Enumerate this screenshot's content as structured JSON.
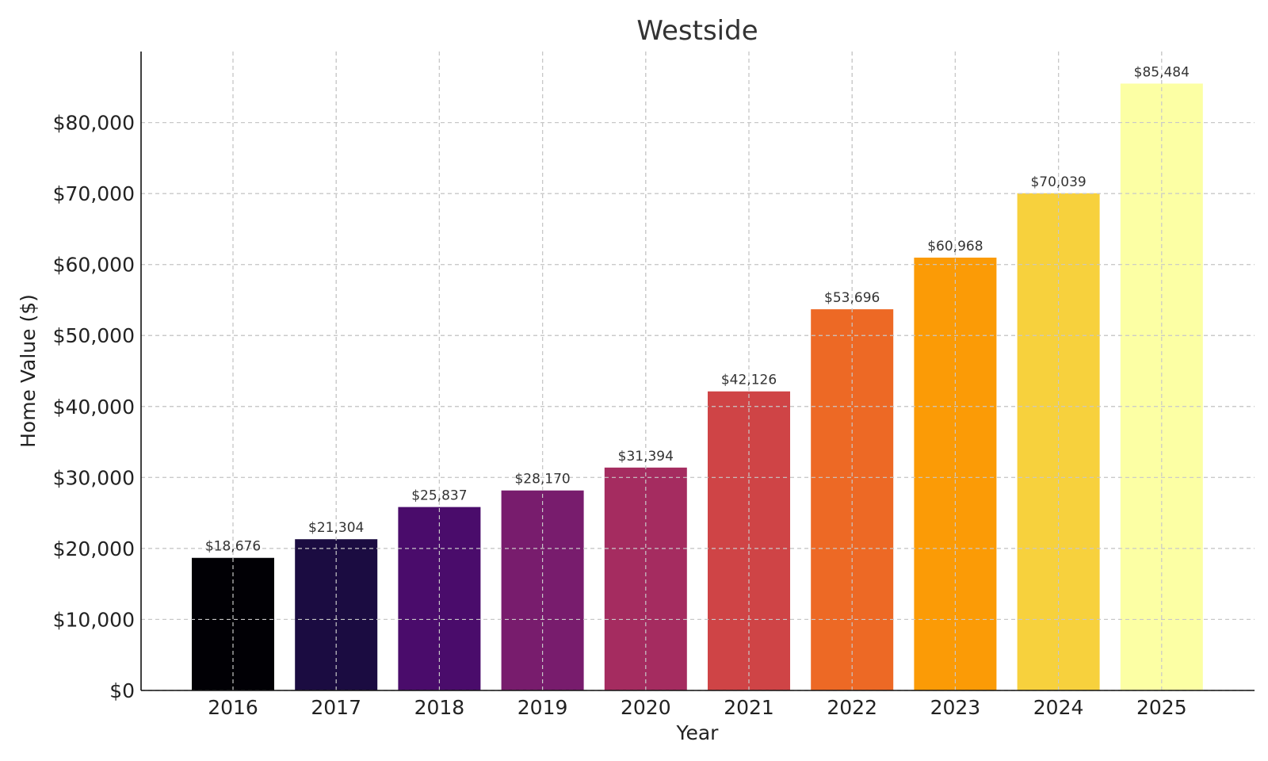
{
  "chart_data": {
    "type": "bar",
    "title": "Westside",
    "xlabel": "Year",
    "ylabel": "Home Value ($)",
    "categories": [
      "2016",
      "2017",
      "2018",
      "2019",
      "2020",
      "2021",
      "2022",
      "2023",
      "2024",
      "2025"
    ],
    "values": [
      18676,
      21304,
      25837,
      28170,
      31394,
      42126,
      53696,
      60968,
      70039,
      85484
    ],
    "data_labels": [
      "$18,676",
      "$21,304",
      "$25,837",
      "$28,170",
      "$31,394",
      "$42,126",
      "$53,696",
      "$60,968",
      "$70,039",
      "$85,484"
    ],
    "bar_colors": [
      "#010005",
      "#1b0c41",
      "#4a0c6b",
      "#781c6d",
      "#a52c60",
      "#cf4446",
      "#ed6925",
      "#fb9b06",
      "#f7d13d",
      "#fcffa4"
    ],
    "y_ticks": [
      0,
      10000,
      20000,
      30000,
      40000,
      50000,
      60000,
      70000,
      80000
    ],
    "y_tick_labels": [
      "$0",
      "$10,000",
      "$20,000",
      "$30,000",
      "$40,000",
      "$50,000",
      "$60,000",
      "$70,000",
      "$80,000"
    ],
    "ylim": [
      0,
      90000
    ],
    "grid": true,
    "legend": "none"
  }
}
